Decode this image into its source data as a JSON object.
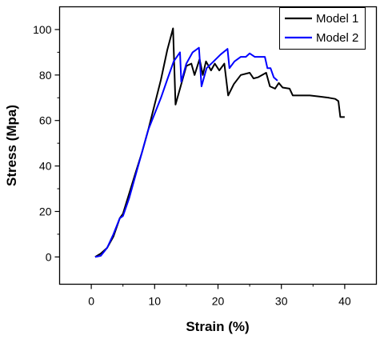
{
  "chart_data": {
    "type": "line",
    "title": "",
    "xlabel": "Strain (%)",
    "ylabel": "Stress (Mpa)",
    "xlim": [
      -5,
      45
    ],
    "ylim": [
      -12,
      110
    ],
    "x_ticks": [
      0,
      10,
      20,
      30,
      40
    ],
    "y_ticks": [
      0,
      20,
      40,
      60,
      80,
      100
    ],
    "grid": false,
    "legend_position": "top-right",
    "series": [
      {
        "name": "Model 1",
        "color": "#000000",
        "points": [
          [
            0.6,
            0
          ],
          [
            1.5,
            1.5
          ],
          [
            2.5,
            4
          ],
          [
            3.5,
            9
          ],
          [
            4.5,
            17
          ],
          [
            5,
            19
          ],
          [
            6,
            28
          ],
          [
            7,
            37
          ],
          [
            8,
            46
          ],
          [
            9,
            56
          ],
          [
            10,
            67
          ],
          [
            11,
            78
          ],
          [
            12,
            91
          ],
          [
            12.9,
            100.5
          ],
          [
            13.3,
            67
          ],
          [
            14,
            74
          ],
          [
            15,
            84
          ],
          [
            15.8,
            85
          ],
          [
            16.3,
            80
          ],
          [
            17.1,
            87
          ],
          [
            17.6,
            80
          ],
          [
            18.1,
            86
          ],
          [
            18.9,
            82
          ],
          [
            19.5,
            85
          ],
          [
            20.2,
            82
          ],
          [
            21,
            85
          ],
          [
            21.6,
            71
          ],
          [
            22.5,
            76
          ],
          [
            23.6,
            80
          ],
          [
            25,
            81
          ],
          [
            25.6,
            78.5
          ],
          [
            26.3,
            79
          ],
          [
            27.6,
            81
          ],
          [
            28.2,
            75
          ],
          [
            29,
            74
          ],
          [
            29.6,
            76.5
          ],
          [
            30.2,
            74.5
          ],
          [
            31.3,
            74
          ],
          [
            31.8,
            71
          ],
          [
            33.3,
            71
          ],
          [
            34.5,
            71
          ],
          [
            36,
            70.5
          ],
          [
            37.5,
            70
          ],
          [
            38.5,
            69.5
          ],
          [
            39,
            68.5
          ],
          [
            39.3,
            61.5
          ],
          [
            40,
            61.5
          ]
        ]
      },
      {
        "name": "Model 2",
        "color": "#0000ff",
        "points": [
          [
            0.6,
            0
          ],
          [
            1.5,
            0.5
          ],
          [
            2.5,
            4
          ],
          [
            3.5,
            10
          ],
          [
            4.5,
            17
          ],
          [
            5,
            18
          ],
          [
            6,
            26
          ],
          [
            7,
            36
          ],
          [
            8,
            46
          ],
          [
            9,
            56
          ],
          [
            10,
            63
          ],
          [
            11,
            70
          ],
          [
            12,
            78
          ],
          [
            13,
            86
          ],
          [
            14,
            90
          ],
          [
            14.2,
            77
          ],
          [
            15,
            85
          ],
          [
            16,
            90
          ],
          [
            17,
            92
          ],
          [
            17.4,
            75
          ],
          [
            18.2,
            83
          ],
          [
            19.3,
            86
          ],
          [
            20.4,
            89
          ],
          [
            21.5,
            91.5
          ],
          [
            21.8,
            83
          ],
          [
            22.6,
            86
          ],
          [
            23.6,
            88
          ],
          [
            24.4,
            88
          ],
          [
            25,
            89.5
          ],
          [
            25.8,
            88
          ],
          [
            26.5,
            88
          ],
          [
            27.4,
            88
          ],
          [
            27.8,
            83
          ],
          [
            28.3,
            83
          ],
          [
            28.8,
            79
          ],
          [
            29.4,
            77.5
          ]
        ]
      }
    ]
  }
}
